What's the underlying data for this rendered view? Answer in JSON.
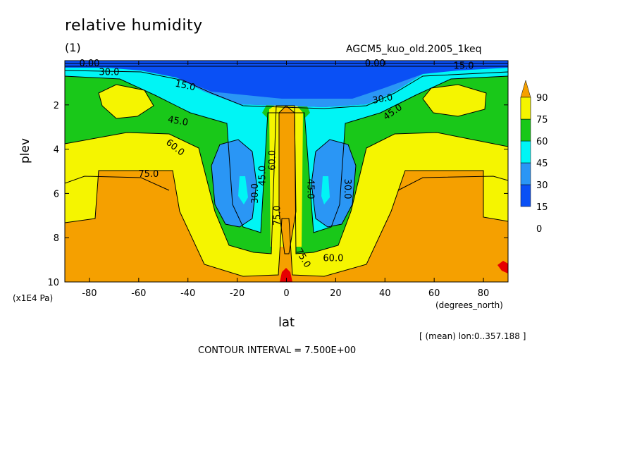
{
  "figure": {
    "title": "relative humidity",
    "units": "(1)",
    "experiment": "AGCM5_kuo_old.2005_1keq",
    "y_multiplier": "(x1E4 Pa)",
    "x_units": "(degrees_north)",
    "mean_note": "[ (mean) lon:0..357.188 ]",
    "contour_interval": "CONTOUR INTERVAL = 7.500E+00"
  },
  "chart_data": {
    "type": "heatmap",
    "xlabel": "lat",
    "ylabel": "plev",
    "xlim": [
      -90,
      90
    ],
    "ylim": [
      0,
      10
    ],
    "y_reversed": true,
    "x_ticks": [
      -80,
      -60,
      -40,
      -20,
      0,
      20,
      40,
      60,
      80
    ],
    "x_tick_labels": [
      "-80",
      "-60",
      "-40",
      "-20",
      "0",
      "20",
      "40",
      "60",
      "80"
    ],
    "y_ticks": [
      2,
      4,
      6,
      8,
      10
    ],
    "y_tick_labels": [
      "2",
      "4",
      "6",
      "8",
      "10"
    ],
    "levels": [
      0,
      15,
      30,
      45,
      60,
      75,
      90
    ],
    "colorbar_labels": [
      "90",
      "75",
      "60",
      "45",
      "30",
      "15",
      "0"
    ],
    "level_colors": [
      "#0a50f5",
      "#2a96f5",
      "#00f5f5",
      "#19c819",
      "#f5f500",
      "#f5a000",
      "#e60000"
    ],
    "contour_labels": [
      "0.00",
      "30.0",
      "15.0",
      "45.0",
      "60.0",
      "75.0",
      "30.0",
      "45.0",
      "60.0",
      "75.0",
      "0.00",
      "15.0",
      "30.0",
      "45.0",
      "30.0",
      "45.0",
      "60.0",
      "75.0"
    ],
    "legend": "right"
  }
}
